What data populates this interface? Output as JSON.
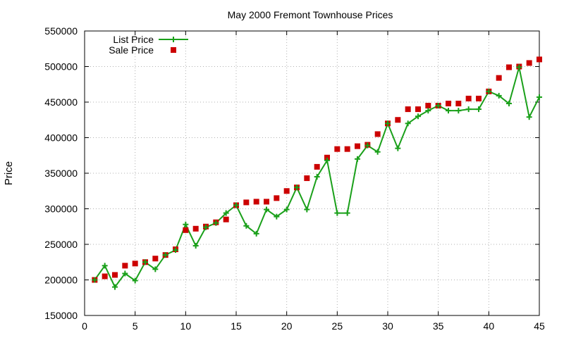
{
  "chart_data": {
    "type": "line",
    "title": "May 2000 Fremont Townhouse Prices",
    "xlabel": "",
    "ylabel": "Price",
    "xlim": [
      0,
      45
    ],
    "ylim": [
      150000,
      550000
    ],
    "xticks": [
      0,
      5,
      10,
      15,
      20,
      25,
      30,
      35,
      40,
      45
    ],
    "yticks": [
      150000,
      200000,
      250000,
      300000,
      350000,
      400000,
      450000,
      500000,
      550000
    ],
    "grid": true,
    "legend_position": "top-left",
    "series": [
      {
        "name": "List Price",
        "style": "linespoints",
        "color": "#1aa01a",
        "x": [
          1,
          2,
          3,
          4,
          5,
          6,
          7,
          8,
          9,
          10,
          11,
          12,
          13,
          14,
          15,
          16,
          17,
          18,
          19,
          20,
          21,
          22,
          23,
          24,
          25,
          26,
          27,
          28,
          29,
          30,
          31,
          32,
          33,
          34,
          35,
          36,
          37,
          38,
          39,
          40,
          41,
          42,
          43,
          44,
          45
        ],
        "y": [
          200000,
          220000,
          190000,
          209000,
          199000,
          225000,
          215000,
          235000,
          242000,
          278000,
          248000,
          274000,
          280000,
          294000,
          305000,
          276000,
          265000,
          299000,
          289000,
          299000,
          330000,
          299000,
          345000,
          368000,
          294000,
          294000,
          370000,
          389000,
          380000,
          420000,
          385000,
          420000,
          430000,
          438000,
          445000,
          438000,
          438000,
          440000,
          440000,
          465000,
          459000,
          448000,
          499000,
          429000,
          457000
        ]
      },
      {
        "name": "Sale Price",
        "style": "points",
        "color": "#cc0000",
        "x": [
          1,
          2,
          3,
          4,
          5,
          6,
          7,
          8,
          9,
          10,
          11,
          12,
          13,
          14,
          15,
          16,
          17,
          18,
          19,
          20,
          21,
          22,
          23,
          24,
          25,
          26,
          27,
          28,
          29,
          30,
          31,
          32,
          33,
          34,
          35,
          36,
          37,
          38,
          39,
          40,
          41,
          42,
          43,
          44,
          45
        ],
        "y": [
          200000,
          205000,
          207000,
          220000,
          223000,
          225000,
          230000,
          235000,
          243000,
          270000,
          272000,
          275000,
          281000,
          285000,
          305000,
          309000,
          310000,
          310000,
          315000,
          325000,
          330000,
          343000,
          359000,
          372000,
          384000,
          384000,
          388000,
          390000,
          405000,
          420000,
          425000,
          440000,
          440000,
          445000,
          445000,
          448000,
          448000,
          455000,
          455000,
          465000,
          484000,
          499000,
          500000,
          505000,
          510000
        ]
      }
    ]
  }
}
